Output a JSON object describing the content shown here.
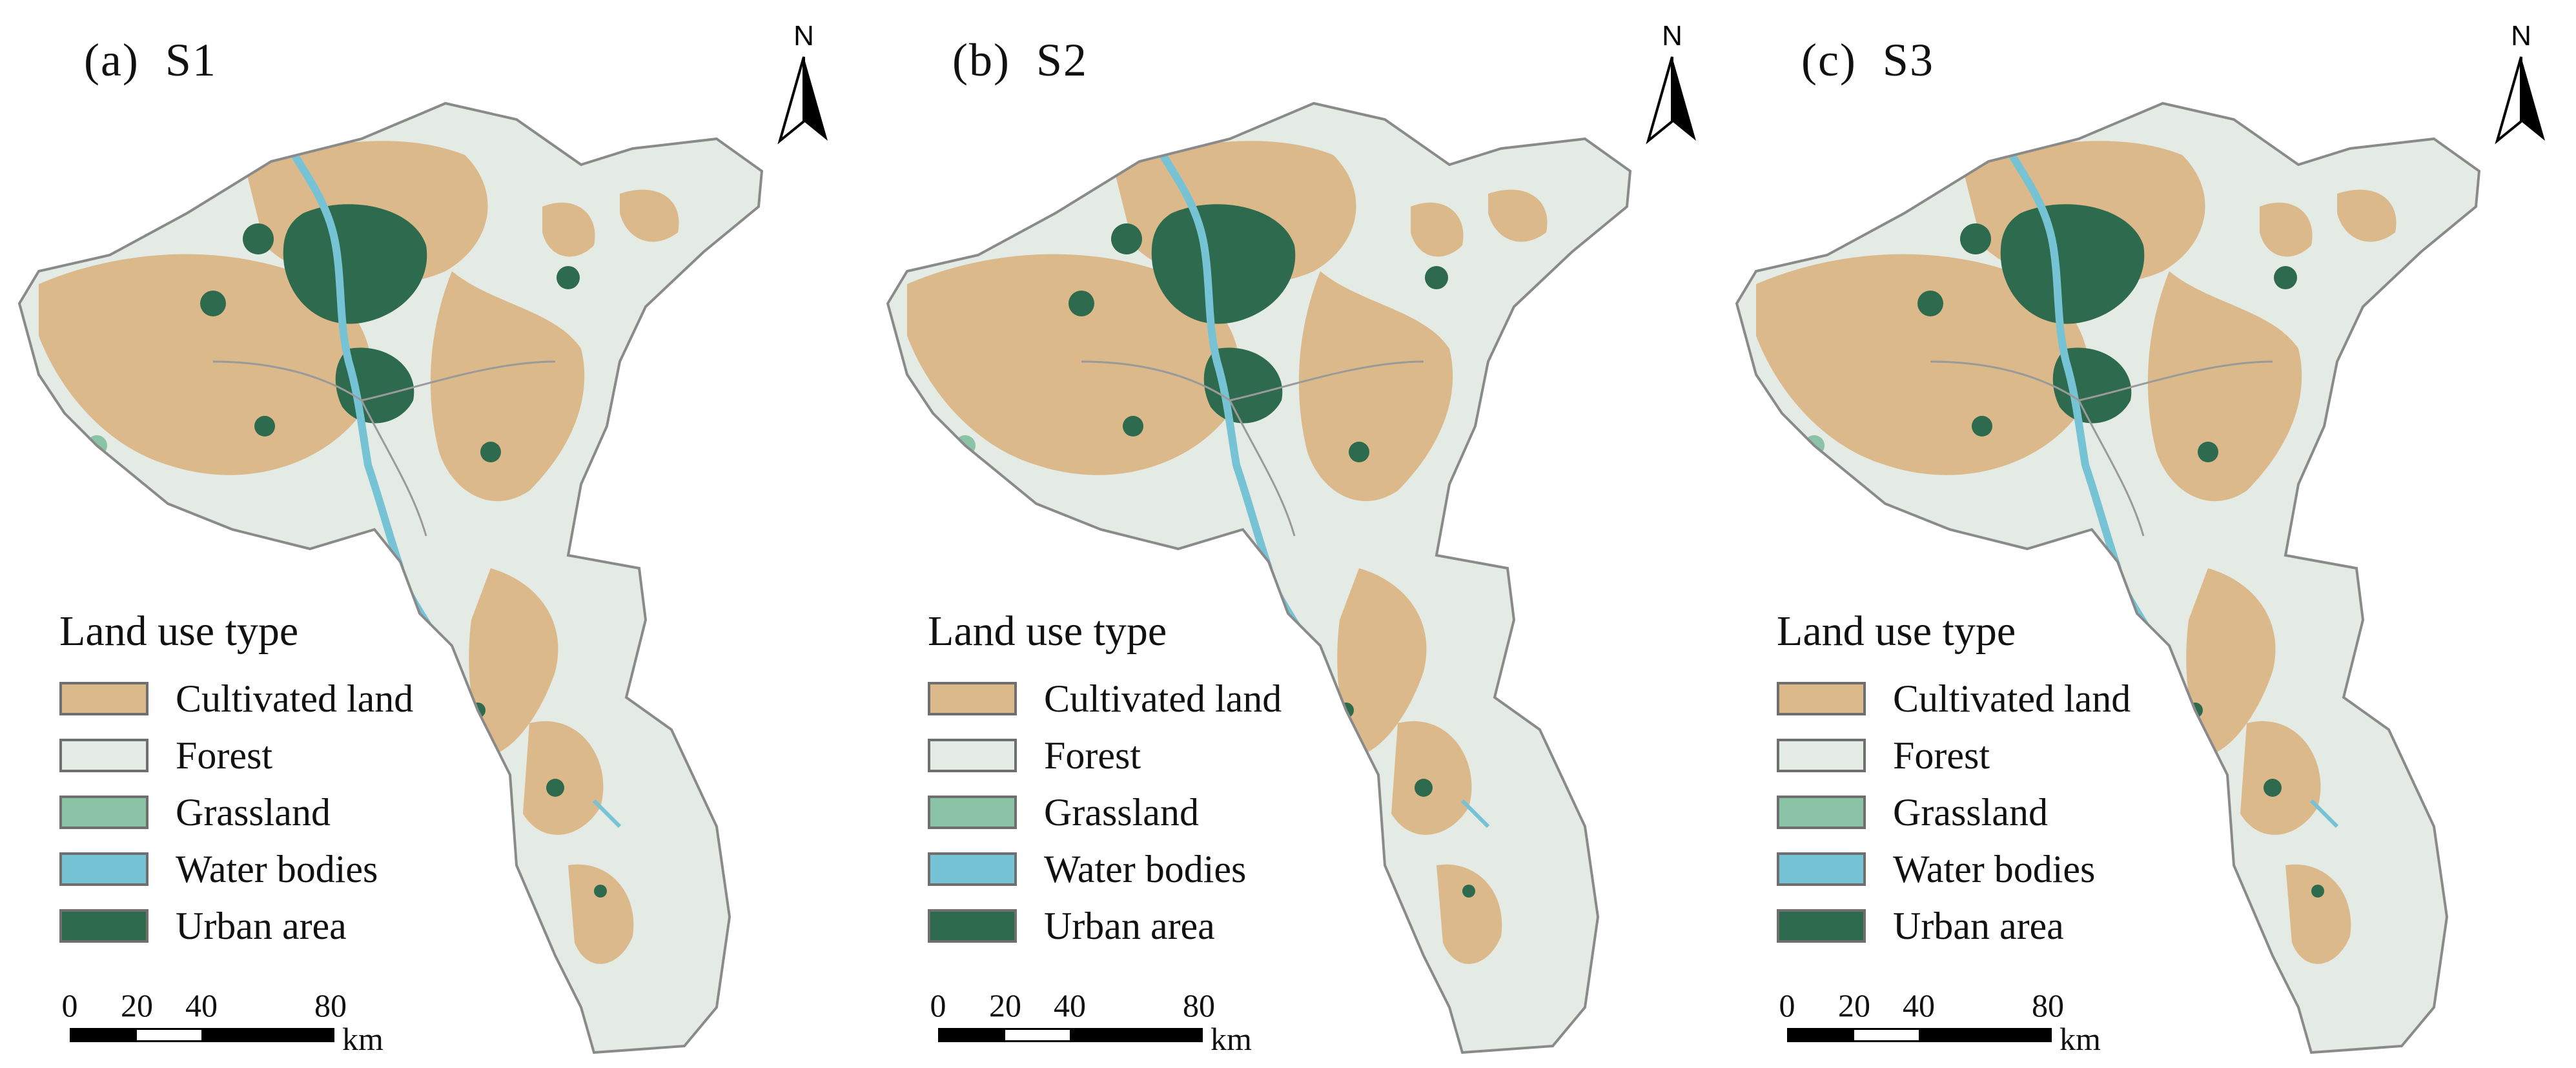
{
  "panels": [
    {
      "label": "(a)  S1",
      "variant": "s1"
    },
    {
      "label": "(b)  S2",
      "variant": "s2"
    },
    {
      "label": "(c)  S3",
      "variant": "s3"
    }
  ],
  "north_arrow": {
    "label": "N"
  },
  "legend": {
    "title": "Land use type",
    "items": [
      {
        "label": "Cultivated land",
        "color": "#dcb98a"
      },
      {
        "label": "Forest",
        "color": "#e3ebe4"
      },
      {
        "label": "Grassland",
        "color": "#8ac3a6"
      },
      {
        "label": "Water bodies",
        "color": "#76c3d6"
      },
      {
        "label": "Urban area",
        "color": "#2e6a4d"
      }
    ]
  },
  "scale_bar": {
    "ticks": [
      "0",
      "20",
      "40",
      "80"
    ],
    "unit": "km"
  },
  "colors": {
    "boundary": "#8a8a8a",
    "cultivated": "#dcb98a",
    "forest": "#e3ebe4",
    "grassland": "#8ac3a6",
    "water": "#76c3d6",
    "urban": "#2e6a4d"
  }
}
